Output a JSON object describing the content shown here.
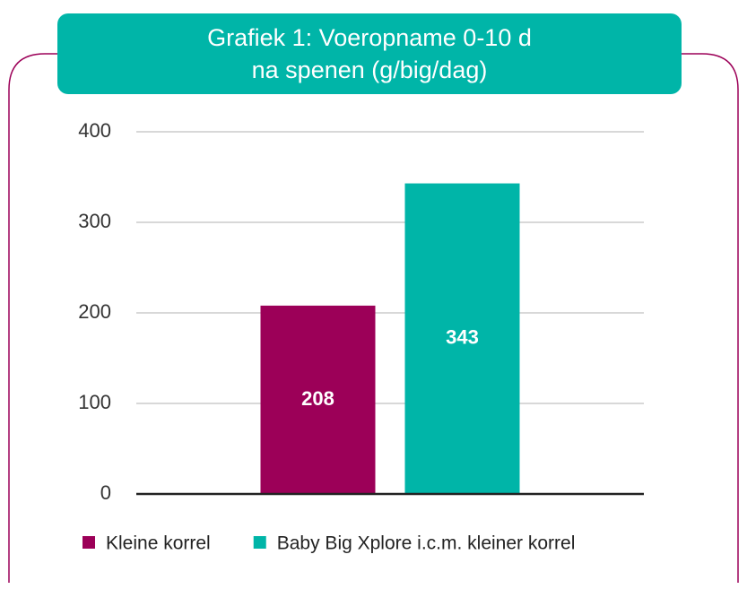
{
  "chart_data": {
    "type": "bar",
    "title": "Grafiek 1: Voeropname 0-10 d\nna spenen (g/big/dag)",
    "categories": [
      null
    ],
    "series": [
      {
        "name": "Kleine korrel",
        "color": "#9c0058",
        "values": [
          208
        ]
      },
      {
        "name": "Baby Big Xplore i.c.m. kleiner korrel",
        "color": "#00b5a8",
        "values": [
          343
        ]
      }
    ],
    "ylim": [
      0,
      400
    ],
    "yticks": [
      0,
      100,
      200,
      300,
      400
    ],
    "grid": true,
    "legend": "bottom"
  }
}
